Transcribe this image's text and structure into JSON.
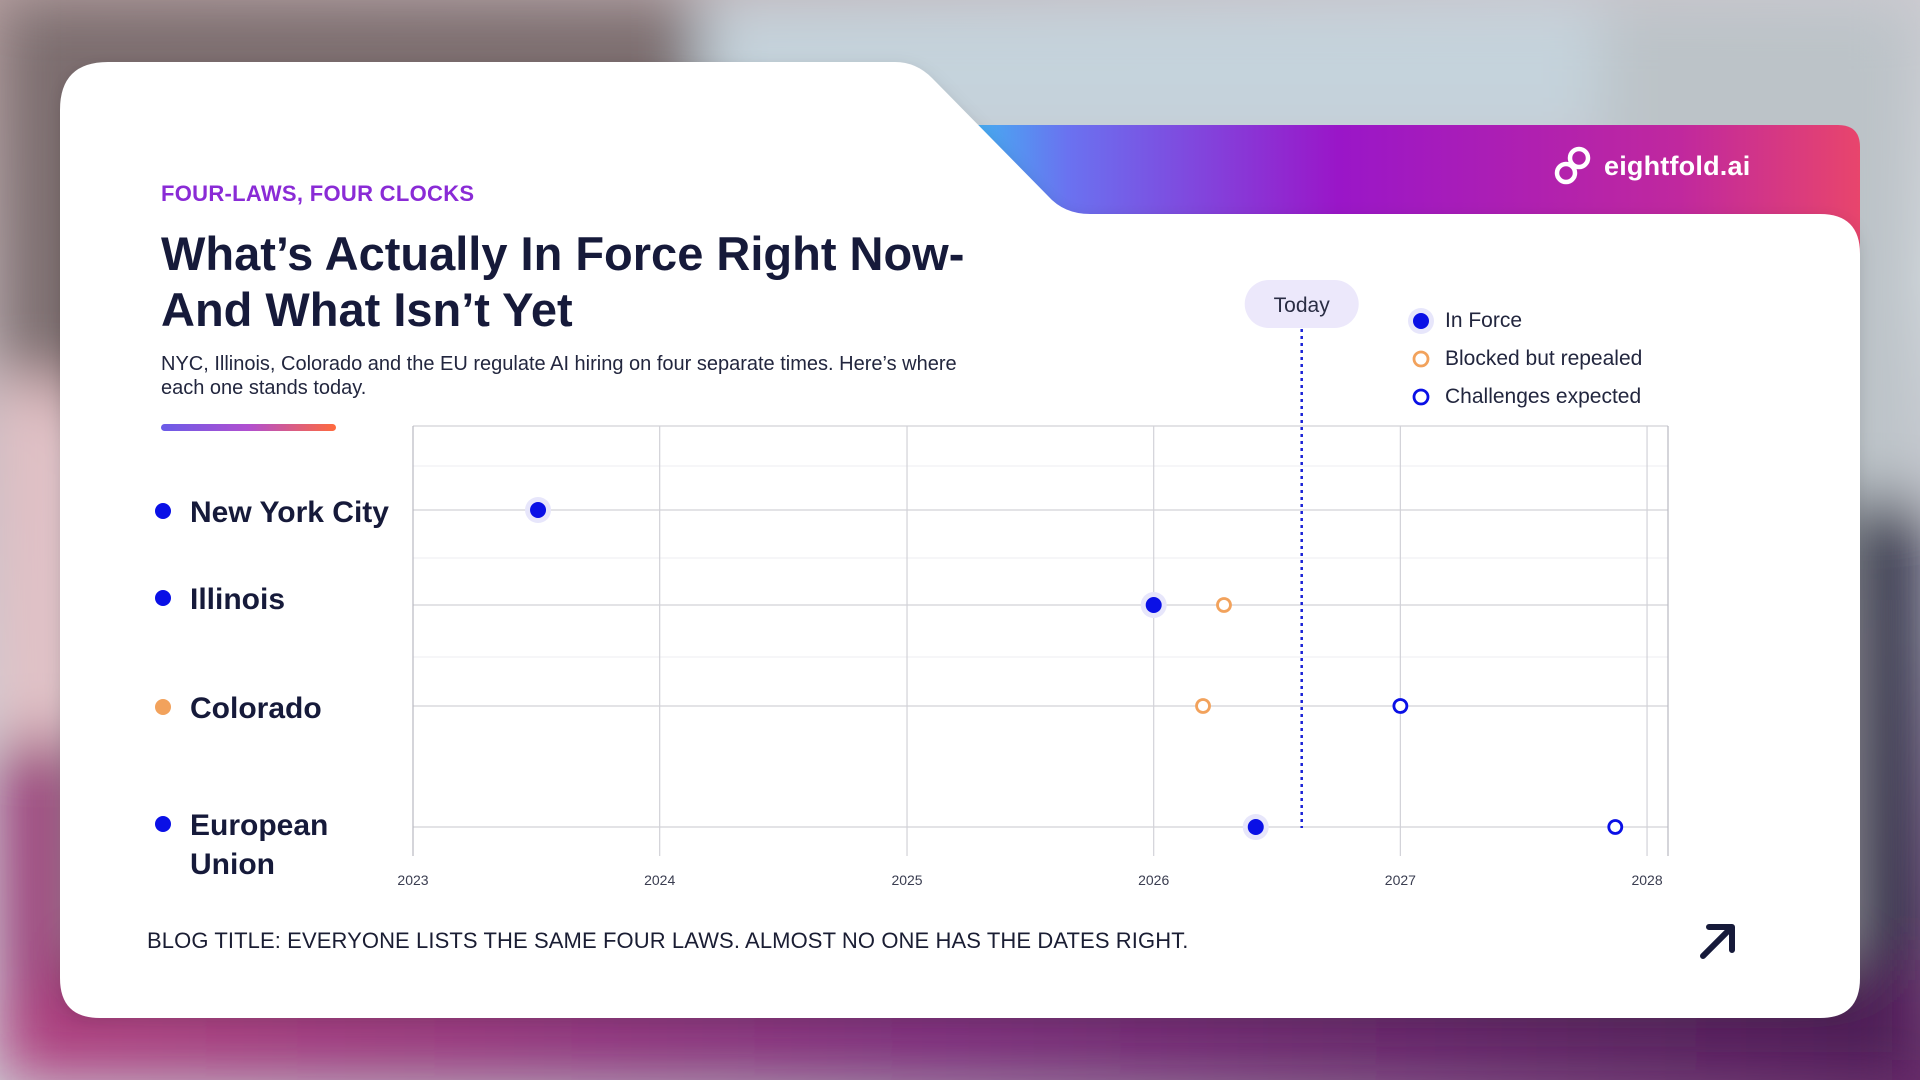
{
  "card": {
    "eyebrow": "FOUR-LAWS, FOUR CLOCKS",
    "title": "What’s Actually In Force Right Now- And What Isn’t Yet",
    "subtitle": "NYC, Illinois, Colorado and the EU regulate AI hiring on four separate times. Here’s where each one stands today.",
    "footer_title": "BLOG TITLE: EVERYONE LISTS THE SAME FOUR LAWS. ALMOST NO ONE HAS THE DATES RIGHT."
  },
  "brand": {
    "name": "eightfold.ai",
    "logo_icon": "eightfold-logo-icon"
  },
  "colors": {
    "eyebrow": "#8a2bd6",
    "title": "#161a3a",
    "in_force": "#0a10e6",
    "blocked": "#f2a25c",
    "challenges": "#0a10e6",
    "today_line": "#1a22d6",
    "today_pill_bg": "#ece8fb",
    "grid": "#d2d2d8",
    "axis": "#b9b9c2"
  },
  "chart_data": {
    "type": "scatter",
    "title": "What’s Actually In Force Right Now- And What Isn’t Yet",
    "xlabel": "",
    "ylabel": "",
    "x_axis": "date",
    "xlim": [
      "2023-01-01",
      "2028-02-01"
    ],
    "x_ticks": [
      "2023",
      "2024",
      "2025",
      "2026",
      "2027",
      "2028"
    ],
    "grid": true,
    "legend_position": "top-right",
    "today": {
      "label": "Today",
      "date": "2026-08-08"
    },
    "rows": [
      {
        "label": "New York City",
        "label_dot": "in_force"
      },
      {
        "label": "Illinois",
        "label_dot": "in_force"
      },
      {
        "label": "Colorado",
        "label_dot": "blocked"
      },
      {
        "label": "European Union",
        "label_dot": "in_force"
      }
    ],
    "series": [
      {
        "name": "In Force",
        "marker": "filled",
        "points": [
          {
            "row": "New York City",
            "date": "2023-07-05"
          },
          {
            "row": "Illinois",
            "date": "2026-01-01"
          },
          {
            "row": "European Union",
            "date": "2026-06-01"
          }
        ]
      },
      {
        "name": "Blocked but repealed",
        "marker": "hollow-orange",
        "points": [
          {
            "row": "Illinois",
            "date": "2026-04-15"
          },
          {
            "row": "Colorado",
            "date": "2026-03-15"
          }
        ]
      },
      {
        "name": "Challenges expected",
        "marker": "hollow-blue",
        "points": [
          {
            "row": "Colorado",
            "date": "2027-01-01"
          },
          {
            "row": "European Union",
            "date": "2027-11-15"
          }
        ]
      }
    ]
  }
}
